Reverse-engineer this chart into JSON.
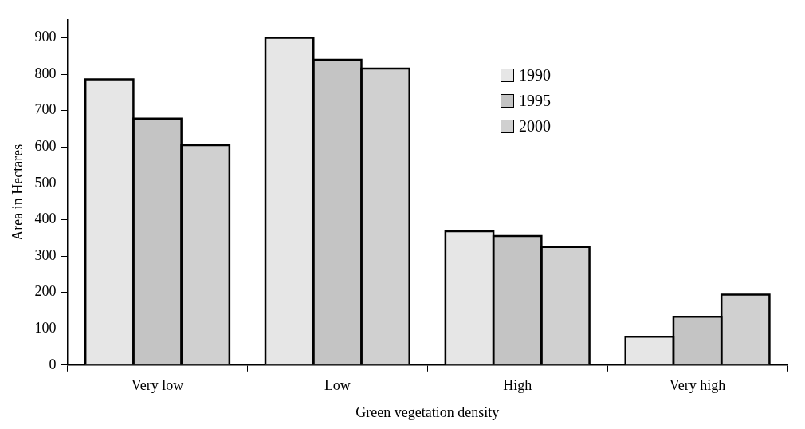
{
  "chart_data": {
    "type": "bar",
    "xlabel": "Green vegetation density",
    "ylabel": "Area in Hectares",
    "categories": [
      "Very low",
      "Low",
      "High",
      "Very high"
    ],
    "series": [
      {
        "name": "1990",
        "color": "#e6e6e6",
        "values": [
          786,
          900,
          368,
          78
        ]
      },
      {
        "name": "1995",
        "color": "#c4c4c4",
        "values": [
          678,
          840,
          355,
          133
        ]
      },
      {
        "name": "2000",
        "color": "#d0d0d0",
        "values": [
          605,
          816,
          325,
          194
        ]
      }
    ],
    "ylim": [
      0,
      950
    ],
    "yticks": [
      0,
      100,
      200,
      300,
      400,
      500,
      600,
      700,
      800,
      900
    ],
    "grid": false,
    "legend": "top right"
  }
}
